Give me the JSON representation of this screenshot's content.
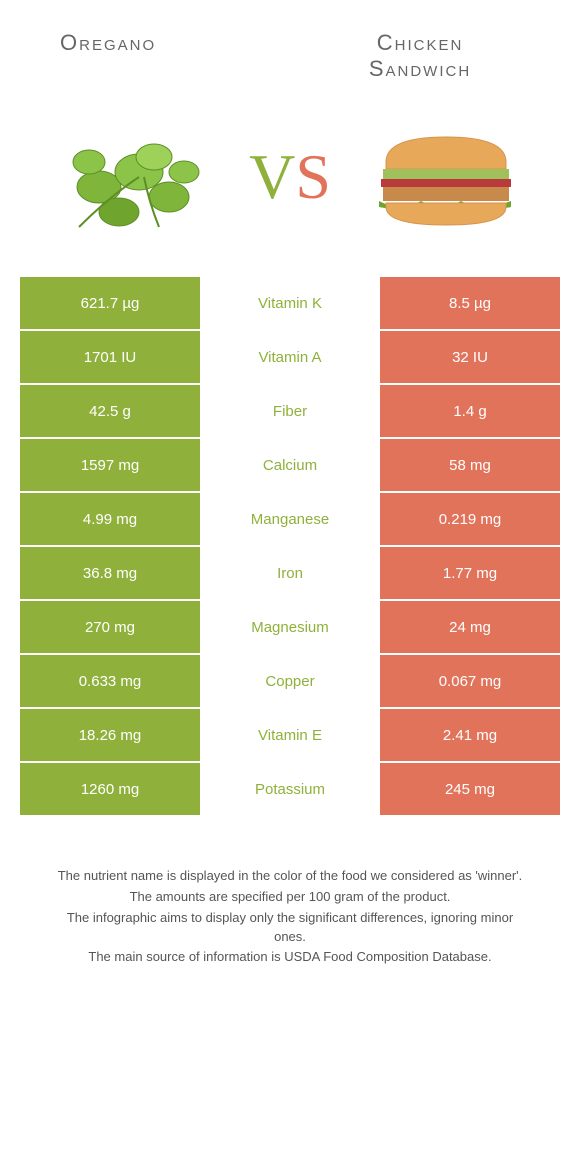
{
  "colors": {
    "left": "#8fb13b",
    "right": "#e2735b",
    "text": "#555555",
    "nutrient_left": "#8fb13b",
    "nutrient_right": "#e2735b"
  },
  "header": {
    "left_title": "Oregano",
    "right_title_line1": "Chicken",
    "right_title_line2": "Sandwich",
    "vs_v": "V",
    "vs_s": "S"
  },
  "rows": [
    {
      "left": "621.7 µg",
      "label": "Vitamin K",
      "right": "8.5 µg",
      "winner": "left"
    },
    {
      "left": "1701 IU",
      "label": "Vitamin A",
      "right": "32 IU",
      "winner": "left"
    },
    {
      "left": "42.5 g",
      "label": "Fiber",
      "right": "1.4 g",
      "winner": "left"
    },
    {
      "left": "1597 mg",
      "label": "Calcium",
      "right": "58 mg",
      "winner": "left"
    },
    {
      "left": "4.99 mg",
      "label": "Manganese",
      "right": "0.219 mg",
      "winner": "left"
    },
    {
      "left": "36.8 mg",
      "label": "Iron",
      "right": "1.77 mg",
      "winner": "left"
    },
    {
      "left": "270 mg",
      "label": "Magnesium",
      "right": "24 mg",
      "winner": "left"
    },
    {
      "left": "0.633 mg",
      "label": "Copper",
      "right": "0.067 mg",
      "winner": "left"
    },
    {
      "left": "18.26 mg",
      "label": "Vitamin E",
      "right": "2.41 mg",
      "winner": "left"
    },
    {
      "left": "1260 mg",
      "label": "Potassium",
      "right": "245 mg",
      "winner": "left"
    }
  ],
  "footer": {
    "line1": "The nutrient name is displayed in the color of the food we considered as 'winner'.",
    "line2": "The amounts are specified per 100 gram of the product.",
    "line3": "The infographic aims to display only the significant differences, ignoring minor ones.",
    "line4": "The main source of information is USDA Food Composition Database."
  }
}
